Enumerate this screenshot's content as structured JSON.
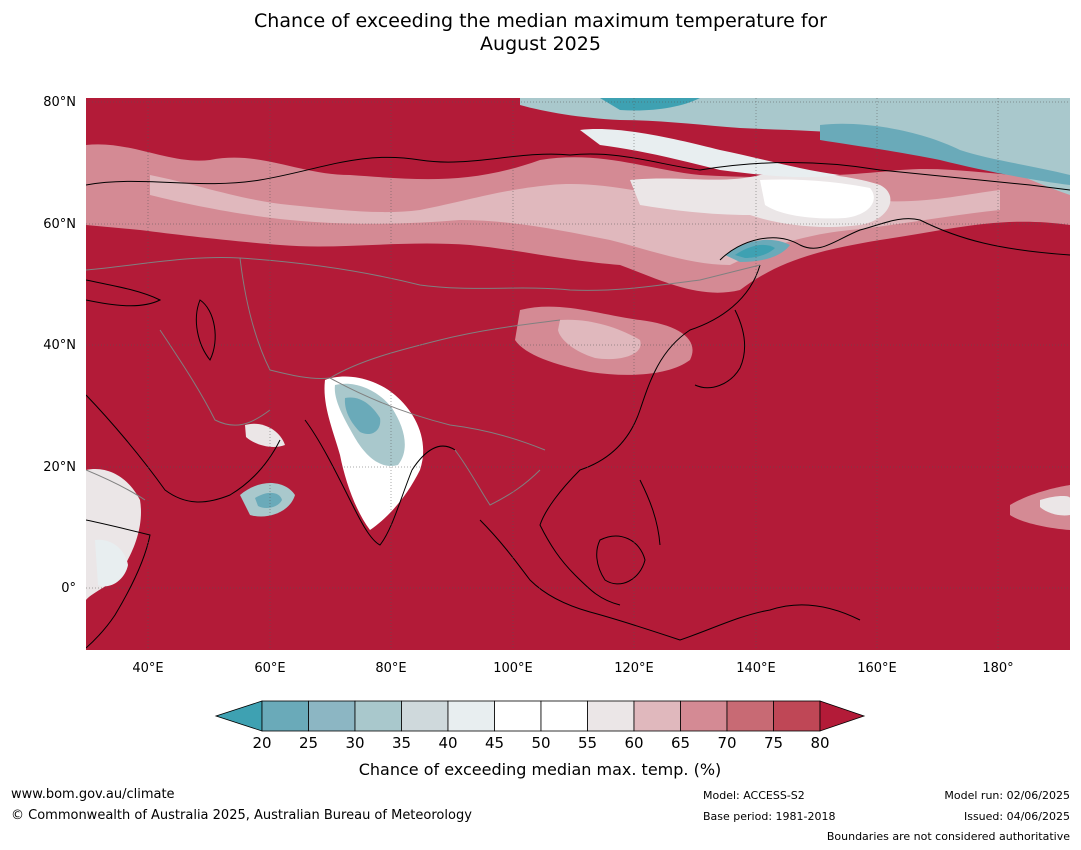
{
  "title": {
    "line1": "Chance of exceeding the median maximum temperature for",
    "line2": "August 2025"
  },
  "map": {
    "lat_labels": [
      "80°N",
      "60°N",
      "40°N",
      "20°N",
      "0°"
    ],
    "lon_labels": [
      "40°E",
      "60°E",
      "80°E",
      "100°E",
      "120°E",
      "140°E",
      "160°E",
      "180°"
    ],
    "ocean_color": "#b31b38",
    "boundaries_color": "#808080",
    "coast_color": "#000000"
  },
  "colorbar": {
    "label": "Chance of exceeding median max. temp. (%)",
    "ticks": [
      "20",
      "25",
      "30",
      "35",
      "40",
      "45",
      "50",
      "55",
      "60",
      "65",
      "70",
      "75",
      "80"
    ],
    "colors": [
      "#3ea1b2",
      "#6aaab9",
      "#8cb6c3",
      "#a9c8cc",
      "#cfd9dc",
      "#e8eef0",
      "#ffffff",
      "#ffffff",
      "#ebe6e7",
      "#e0b8bd",
      "#d48a94",
      "#c86a74",
      "#bf4756",
      "#b31b38"
    ]
  },
  "footer": {
    "url": "www.bom.gov.au/climate",
    "copyright": "© Commonwealth of Australia 2025, Australian Bureau of Meteorology",
    "model": "Model: ACCESS-S2",
    "base_period": "Base period: 1981-2018",
    "model_run": "Model run: 02/06/2025",
    "issued": "Issued: 04/06/2025",
    "disclaimer": "Boundaries are not considered authoritative"
  }
}
